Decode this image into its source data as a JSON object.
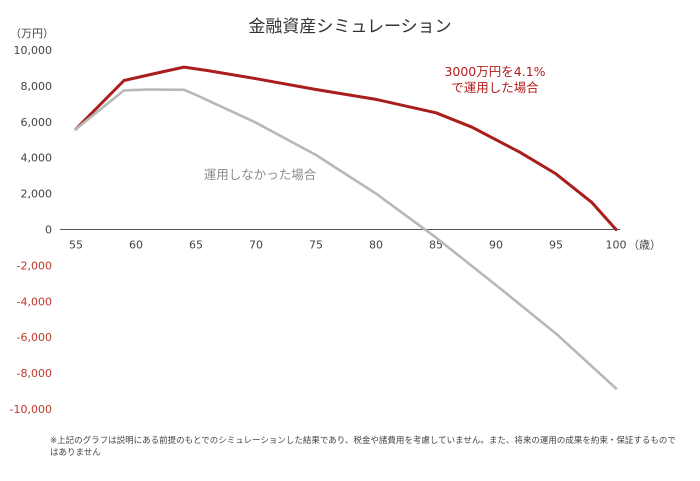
{
  "chart_data": {
    "type": "line",
    "title": "金融資産シミュレーション",
    "ylabel": "（万円）",
    "xlabel": "（歳）",
    "xlim": [
      55,
      100
    ],
    "ylim": [
      -10000,
      10000
    ],
    "x_ticks": [
      55,
      60,
      65,
      70,
      75,
      80,
      85,
      90,
      95,
      100
    ],
    "x_tick_labels": [
      "55",
      "60",
      "65",
      "70",
      "75",
      "80",
      "85",
      "90",
      "95",
      "100"
    ],
    "y_ticks": [
      10000,
      8000,
      6000,
      4000,
      2000,
      0,
      -2000,
      -4000,
      -6000,
      -8000,
      -10000
    ],
    "y_tick_labels": [
      "10,000",
      "8,000",
      "6,000",
      "4,000",
      "2,000",
      "0",
      "-2,000",
      "-4,000",
      "-6,000",
      "-8,000",
      "-10,000"
    ],
    "series": [
      {
        "name": "3000万円を4.1%で運用した場合",
        "color": "#a91d1d",
        "x": [
          55,
          59,
          62,
          64,
          66,
          70,
          75,
          80,
          85,
          88,
          92,
          95,
          98,
          100
        ],
        "values": [
          5600,
          8300,
          8750,
          9050,
          8850,
          8400,
          7800,
          7250,
          6500,
          5700,
          4300,
          3100,
          1500,
          0
        ]
      },
      {
        "name": "運用しなかった場合",
        "color": "#b8b8b8",
        "x": [
          55,
          59,
          61,
          64,
          65,
          70,
          75,
          80,
          85,
          90,
          95,
          100
        ],
        "values": [
          5600,
          7750,
          7800,
          7780,
          7500,
          5950,
          4150,
          2000,
          -450,
          -3100,
          -5800,
          -8850
        ]
      }
    ],
    "annotations": [
      {
        "lines": [
          "3000万円を4.1%",
          "で運用した場合"
        ],
        "color": "#b01c1c"
      },
      {
        "lines": [
          "運用しなかった場合"
        ],
        "color": "#8c8c8c"
      }
    ],
    "footnote": "※上記のグラフは説明にある前提のもとでのシミュレーションした結果であり、税金や諸費用を考慮していません。また、将来の運用の成果を約束・保証するものではありません"
  }
}
